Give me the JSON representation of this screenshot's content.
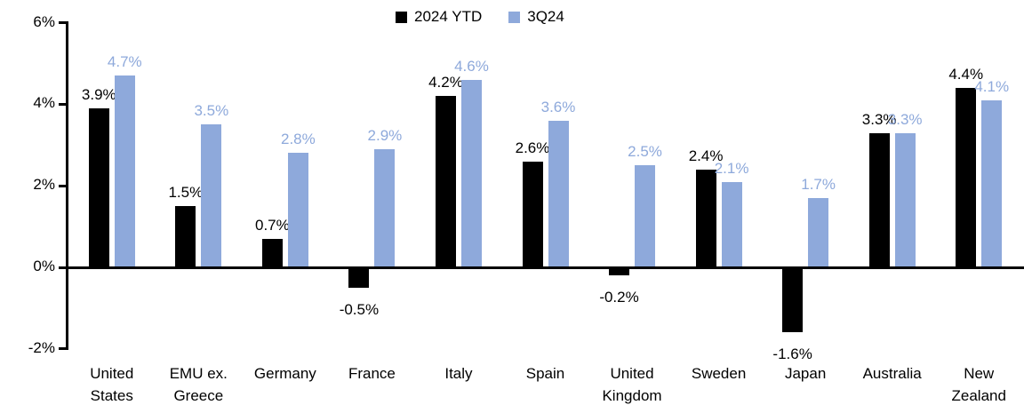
{
  "chart_data": {
    "type": "bar",
    "title": "",
    "grid": false,
    "legend_position": "top-center",
    "axis_color": "#000000",
    "ylim": [
      -2,
      6
    ],
    "yticks": [
      {
        "value": 6,
        "label": "6%"
      },
      {
        "value": 4,
        "label": "4%"
      },
      {
        "value": 2,
        "label": "2%"
      },
      {
        "value": 0,
        "label": "0%"
      },
      {
        "value": -2,
        "label": "-2%"
      }
    ],
    "categories": [
      {
        "label": "United States",
        "lines": [
          "United",
          "States"
        ]
      },
      {
        "label": "EMU ex. Greece",
        "lines": [
          "EMU ex.",
          "Greece"
        ]
      },
      {
        "label": "Germany",
        "lines": [
          "Germany"
        ]
      },
      {
        "label": "France",
        "lines": [
          "France"
        ]
      },
      {
        "label": "Italy",
        "lines": [
          "Italy"
        ]
      },
      {
        "label": "Spain",
        "lines": [
          "Spain"
        ]
      },
      {
        "label": "United Kingdom",
        "lines": [
          "United",
          "Kingdom"
        ]
      },
      {
        "label": "Sweden",
        "lines": [
          "Sweden"
        ]
      },
      {
        "label": "Japan",
        "lines": [
          "Japan"
        ]
      },
      {
        "label": "Australia",
        "lines": [
          "Australia"
        ]
      },
      {
        "label": "New Zealand",
        "lines": [
          "New",
          "Zealand"
        ]
      }
    ],
    "series": [
      {
        "name": "2024 YTD",
        "color": "#000000",
        "values": [
          3.9,
          1.5,
          0.7,
          -0.5,
          4.2,
          2.6,
          -0.2,
          2.4,
          -1.6,
          3.3,
          4.4
        ],
        "labels": [
          "3.9%",
          "1.5%",
          "0.7%",
          "-0.5%",
          "4.2%",
          "2.6%",
          "-0.2%",
          "2.4%",
          "-1.6%",
          "3.3%",
          "4.4%"
        ]
      },
      {
        "name": "3Q24",
        "color": "#8EA9DB",
        "values": [
          4.7,
          3.5,
          2.8,
          2.9,
          4.6,
          3.6,
          2.5,
          2.1,
          1.7,
          3.3,
          4.1
        ],
        "labels": [
          "4.7%",
          "3.5%",
          "2.8%",
          "2.9%",
          "4.6%",
          "3.6%",
          "2.5%",
          "2.1%",
          "1.7%",
          "3.3%",
          "4.1%"
        ]
      }
    ]
  }
}
